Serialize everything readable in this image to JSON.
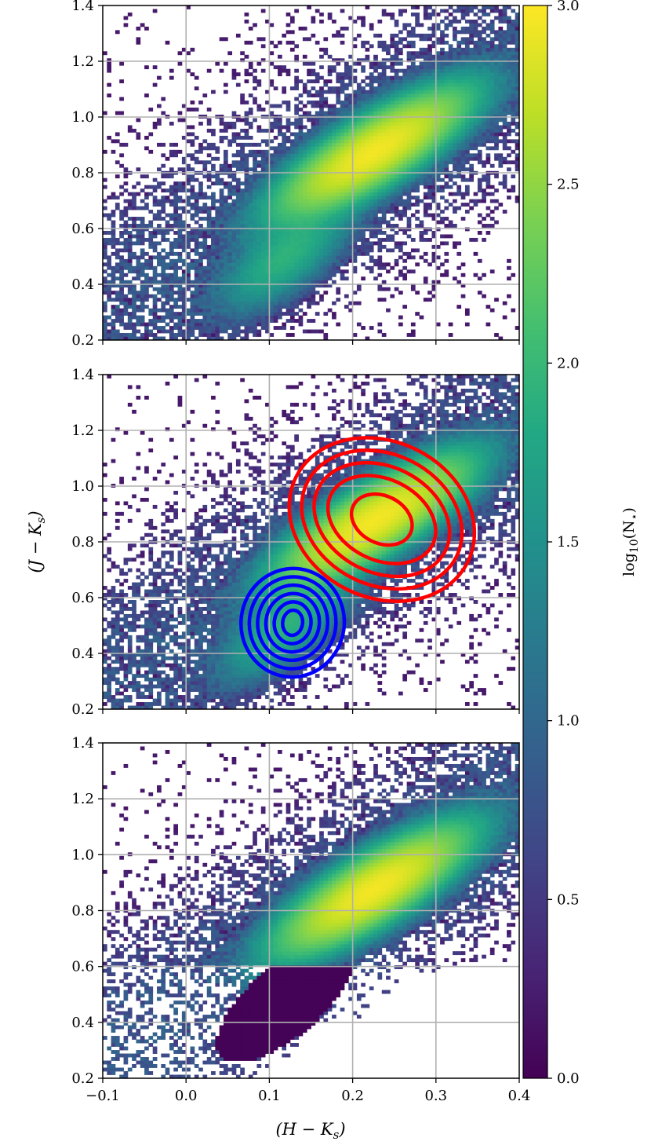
{
  "chart_data": [
    {
      "type": "heatmap",
      "panel": "top",
      "description_of_content": "2D histogram of star counts in colour–colour space",
      "x_range": [
        -0.1,
        0.4
      ],
      "y_range": [
        0.2,
        1.4
      ],
      "y_ticks": [
        "0.2",
        "0.4",
        "0.6",
        "0.8",
        "1.0",
        "1.2",
        "1.4"
      ],
      "grid": true,
      "color_scale": "viridis",
      "density_components": [
        {
          "center": [
            0.225,
            0.875
          ],
          "sigma": [
            0.055,
            0.11
          ],
          "corr": 0.8,
          "peak_log10_N": 2.95
        },
        {
          "center": [
            0.12,
            0.5
          ],
          "sigma": [
            0.04,
            0.1
          ],
          "corr": 0.7,
          "peak_log10_N": 1.9
        }
      ],
      "contours": []
    },
    {
      "type": "heatmap",
      "panel": "middle",
      "x_range": [
        -0.1,
        0.4
      ],
      "y_range": [
        0.2,
        1.4
      ],
      "y_ticks": [
        "0.2",
        "0.4",
        "0.6",
        "0.8",
        "1.0",
        "1.2",
        "1.4"
      ],
      "grid": true,
      "color_scale": "viridis",
      "density_components": [
        {
          "center": [
            0.225,
            0.875
          ],
          "sigma": [
            0.055,
            0.11
          ],
          "corr": 0.8,
          "peak_log10_N": 2.95
        },
        {
          "center": [
            0.12,
            0.5
          ],
          "sigma": [
            0.04,
            0.1
          ],
          "corr": 0.7,
          "peak_log10_N": 1.9
        }
      ],
      "contours": [
        {
          "color": "#ff0000",
          "center": [
            0.235,
            0.88
          ],
          "levels": [
            {
              "semi_x": 0.038,
              "semi_y": 0.085
            },
            {
              "semi_x": 0.068,
              "semi_y": 0.145
            },
            {
              "semi_x": 0.085,
              "semi_y": 0.19
            },
            {
              "semi_x": 0.1,
              "semi_y": 0.235
            },
            {
              "semi_x": 0.115,
              "semi_y": 0.28
            }
          ],
          "angle_deg": 26
        },
        {
          "color": "#0000ff",
          "center": [
            0.128,
            0.51
          ],
          "levels": [
            {
              "semi_x": 0.012,
              "semi_y": 0.045
            },
            {
              "semi_x": 0.022,
              "semi_y": 0.075
            },
            {
              "semi_x": 0.032,
              "semi_y": 0.105
            },
            {
              "semi_x": 0.042,
              "semi_y": 0.135
            },
            {
              "semi_x": 0.052,
              "semi_y": 0.165
            },
            {
              "semi_x": 0.062,
              "semi_y": 0.195
            }
          ],
          "angle_deg": 8
        }
      ]
    },
    {
      "type": "heatmap",
      "panel": "bottom",
      "x_range": [
        -0.1,
        0.4
      ],
      "y_range": [
        0.2,
        1.4
      ],
      "x_ticks": [
        "−0.1",
        "0.0",
        "0.1",
        "0.2",
        "0.3",
        "0.4"
      ],
      "y_ticks": [
        "0.2",
        "0.4",
        "0.6",
        "0.8",
        "1.0",
        "1.2",
        "1.4"
      ],
      "grid": true,
      "color_scale": "viridis",
      "density_components": [
        {
          "center": [
            0.225,
            0.875
          ],
          "sigma": [
            0.055,
            0.11
          ],
          "corr": 0.8,
          "peak_log10_N": 2.95
        }
      ],
      "residual_floor_below_y": 0.6,
      "contours": []
    }
  ],
  "axes": {
    "xlabel": "(H − K",
    "xlabel_sub": "s",
    "xlabel_close": ")",
    "ylabel": "(J − K",
    "ylabel_sub": "s",
    "ylabel_close": ")"
  },
  "colorbar": {
    "label_main": "log",
    "label_sub": "10",
    "label_rest": "(N",
    "label_star": "⋆",
    "label_close": ")",
    "range": [
      0.0,
      3.0
    ],
    "ticks": [
      "0.0",
      "0.5",
      "1.0",
      "1.5",
      "2.0",
      "2.5",
      "3.0"
    ],
    "colormap": "viridis"
  }
}
